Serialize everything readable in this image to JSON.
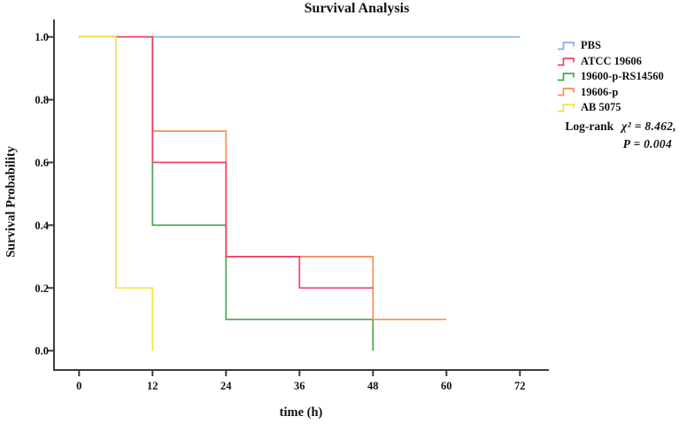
{
  "chart_data": {
    "type": "line",
    "subtype": "kaplan-meier-step-curves",
    "title": "Survival Analysis",
    "xlabel": "time (h)",
    "ylabel": "Survival Probability",
    "xlim": [
      0,
      72
    ],
    "ylim": [
      0.0,
      1.0
    ],
    "x_ticks": [
      "0",
      "12",
      "24",
      "36",
      "48",
      "60",
      "72"
    ],
    "y_ticks": [
      "0.0",
      "0.2",
      "0.4",
      "0.6",
      "0.8",
      "1.0"
    ],
    "grid": false,
    "legend_position": "right-outside",
    "axis_color": "#3d3d3d",
    "series": [
      {
        "name": "PBS",
        "color": "#85aee8",
        "points": [
          [
            0,
            1.0
          ],
          [
            72,
            1.0
          ]
        ]
      },
      {
        "name": "ATCC 19606",
        "color": "#ee4168",
        "points": [
          [
            0,
            1.0
          ],
          [
            12,
            1.0
          ],
          [
            12,
            0.6
          ],
          [
            24,
            0.6
          ],
          [
            24,
            0.3
          ],
          [
            36,
            0.3
          ],
          [
            36,
            0.2
          ],
          [
            48,
            0.2
          ]
        ]
      },
      {
        "name": "19600-p-RS14560",
        "color": "#4aa44a",
        "points": [
          [
            0,
            1.0
          ],
          [
            12,
            1.0
          ],
          [
            12,
            0.4
          ],
          [
            24,
            0.4
          ],
          [
            24,
            0.1
          ],
          [
            48,
            0.1
          ],
          [
            48,
            0.0
          ]
        ]
      },
      {
        "name": "19606-p",
        "color": "#fb8c55",
        "points": [
          [
            0,
            1.0
          ],
          [
            12,
            1.0
          ],
          [
            12,
            0.7
          ],
          [
            24,
            0.7
          ],
          [
            24,
            0.3
          ],
          [
            48,
            0.3
          ],
          [
            48,
            0.1
          ],
          [
            60,
            0.1
          ]
        ]
      },
      {
        "name": "AB 5075",
        "color": "#f2e33e",
        "points": [
          [
            0,
            1.0
          ],
          [
            6,
            1.0
          ],
          [
            6,
            0.2
          ],
          [
            12,
            0.2
          ],
          [
            12,
            0.0
          ]
        ]
      }
    ],
    "draw_order": [
      0,
      2,
      3,
      1,
      4
    ]
  },
  "annotation": {
    "prefix": "Log-rank",
    "stat": "χ² = 8.462,",
    "p_value": "P = 0.004"
  }
}
